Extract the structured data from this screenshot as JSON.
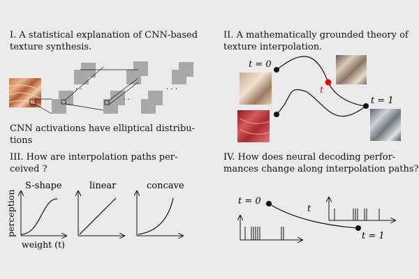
{
  "panel1": {
    "title_line1": "I. A statistical explanation of CNN-based",
    "title_line2": "texture synthesis.",
    "caption_line1": "CNN activations have elliptical distribu-",
    "caption_line2": "tions"
  },
  "panel2": {
    "title_line1": "II. A mathematically grounded theory of",
    "title_line2": "texture interpolation.",
    "label_t0": "t = 0",
    "label_t": "t",
    "label_t1": "t = 1",
    "colors": {
      "path": "#111111",
      "midpoint": "#e01010"
    }
  },
  "panel3": {
    "title_line1": "III. How are interpolation paths per-",
    "title_line2": "ceived ?",
    "curves": [
      "S-shape",
      "linear",
      "concave"
    ],
    "ylabel": "perception",
    "xlabel": "weight (t)"
  },
  "panel4": {
    "title_line1": "IV. How does neural decoding perfor-",
    "title_line2": "mances change along interpolation paths?",
    "label_t0": "t = 0",
    "label_t": "t",
    "label_t1": "t = 1"
  }
}
